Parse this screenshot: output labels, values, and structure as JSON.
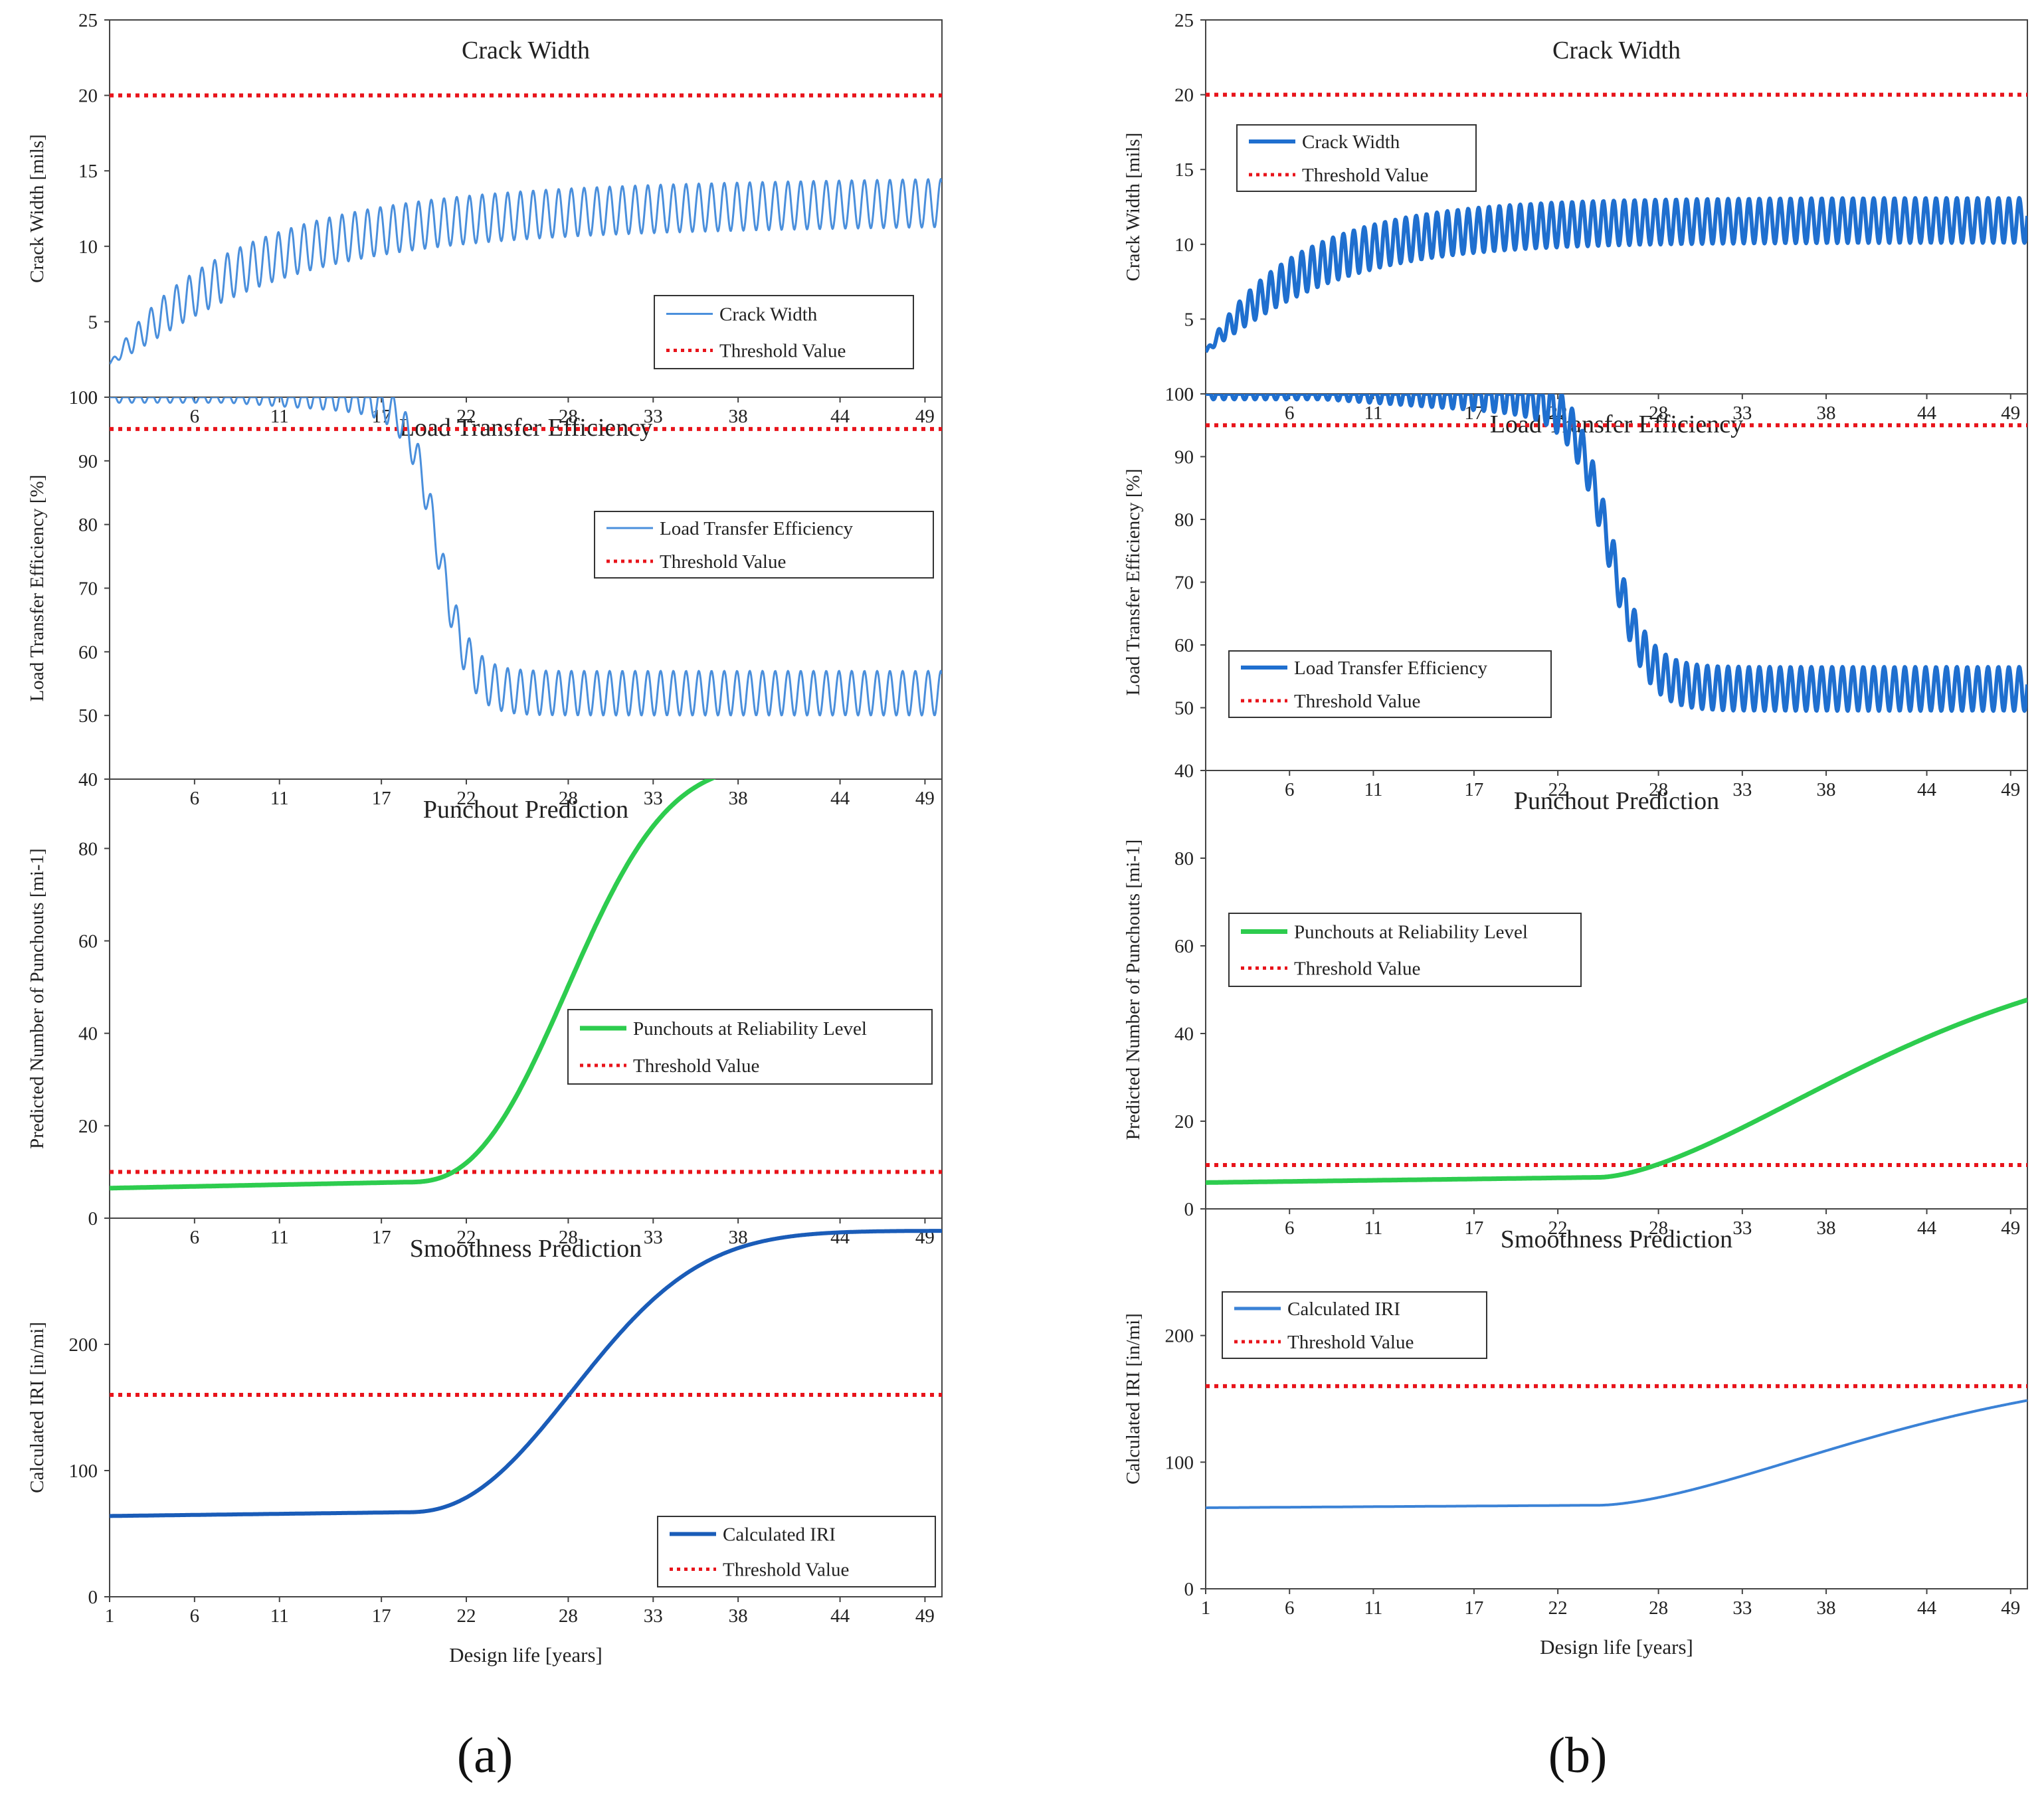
{
  "figure": {
    "panel_labels": [
      "(a)",
      "(b)"
    ],
    "x_ticks": [
      "1",
      "6",
      "11",
      "17",
      "22",
      "28",
      "33",
      "38",
      "44",
      "49"
    ],
    "x_label": "Design life [years]"
  },
  "colors": {
    "threshold": "#e8141b",
    "blue_a": "#4a8fdc",
    "blue_b": "#1f6fcf",
    "green": "#2dcc4e",
    "iri_a": "#1a5cb8",
    "iri_b": "#3b82d6"
  },
  "chart_data": [
    {
      "panel": "a",
      "type": "line",
      "title": "Crack Width",
      "ylabel": "Crack Width [mils]",
      "ylim": [
        0,
        25
      ],
      "yticks": [
        "0",
        "5",
        "10",
        "15",
        "20",
        "25"
      ],
      "xlim": [
        1,
        50
      ],
      "threshold": 20,
      "series": [
        {
          "name": "Crack Width",
          "kind": "crack",
          "params": {
            "start": 2.2,
            "asym": 12.3,
            "rate": 0.12,
            "amp": 1.6,
            "period": 0.75,
            "slope": 0.012
          }
        },
        {
          "name": "Threshold Value",
          "kind": "threshold",
          "value": 20
        }
      ],
      "legend": {
        "entries": [
          "Crack Width",
          "Threshold Value"
        ],
        "position": "bottom-right"
      }
    },
    {
      "panel": "a",
      "type": "line",
      "title": "Load Transfer Efficiency",
      "ylabel": "Load Transfer Efficiency [%]",
      "ylim": [
        40,
        100
      ],
      "yticks": [
        "40",
        "50",
        "60",
        "70",
        "80",
        "90",
        "100"
      ],
      "xlim": [
        1,
        50
      ],
      "threshold": 95,
      "series": [
        {
          "name": "Load Transfer Efficiency",
          "kind": "lte",
          "params": {
            "high": 100,
            "low": 53.5,
            "mid": 20.3,
            "width": 0.9,
            "amp_max": 3.5,
            "period": 0.75
          }
        },
        {
          "name": "Threshold Value",
          "kind": "threshold",
          "value": 95
        }
      ],
      "legend": {
        "entries": [
          "Load Transfer Efficiency",
          "Threshold Value"
        ],
        "position": "top-right"
      }
    },
    {
      "panel": "a",
      "type": "line",
      "title": "Punchout Prediction",
      "ylabel": "Predicted Number of Punchouts [mi-1]",
      "ylim": [
        0,
        95
      ],
      "yticks": [
        "0",
        "20",
        "40",
        "60",
        "80"
      ],
      "xlim": [
        1,
        50
      ],
      "threshold": 10,
      "series": [
        {
          "name": "Punchouts at Reliability Level",
          "kind": "growth",
          "params": {
            "base": 6.5,
            "base_end": 7.8,
            "t0": 18.5,
            "total": 98.5,
            "k": 0.072,
            "p": 2.6
          }
        },
        {
          "name": "Threshold Value",
          "kind": "threshold",
          "value": 10
        }
      ],
      "legend": {
        "entries": [
          "Punchouts at Reliability Level",
          "Threshold Value"
        ],
        "position": "center-right"
      }
    },
    {
      "panel": "a",
      "type": "line",
      "title": "Smoothness Prediction",
      "ylabel": "Calculated IRI [in/mi]",
      "ylim": [
        0,
        300
      ],
      "yticks": [
        "0",
        "100",
        "200"
      ],
      "xlim": [
        1,
        50
      ],
      "threshold": 160,
      "series": [
        {
          "name": "Calculated IRI",
          "kind": "growth",
          "params": {
            "base": 64,
            "base_end": 67,
            "t0": 18.5,
            "total": 290,
            "k": 0.06,
            "p": 2.3
          }
        },
        {
          "name": "Threshold Value",
          "kind": "threshold",
          "value": 160
        }
      ],
      "legend": {
        "entries": [
          "Calculated IRI",
          "Threshold Value"
        ],
        "position": "bottom-right"
      }
    },
    {
      "panel": "b",
      "type": "line",
      "title": "Crack Width",
      "ylabel": "Crack Width [mils]",
      "ylim": [
        0,
        25
      ],
      "yticks": [
        "0",
        "5",
        "10",
        "15",
        "20",
        "25"
      ],
      "xlim": [
        1,
        50
      ],
      "threshold": 20,
      "series": [
        {
          "name": "Crack Width",
          "kind": "crack",
          "params": {
            "start": 2.8,
            "asym": 11.6,
            "rate": 0.16,
            "amp": 1.5,
            "period": 0.62,
            "slope": 0.0
          }
        },
        {
          "name": "Threshold Value",
          "kind": "threshold",
          "value": 20
        }
      ],
      "legend": {
        "entries": [
          "Crack Width",
          "Threshold Value"
        ],
        "position": "top-left"
      }
    },
    {
      "panel": "b",
      "type": "line",
      "title": "Load Transfer Efficiency",
      "ylabel": "Load Transfer Efficiency [%]",
      "ylim": [
        40,
        100
      ],
      "yticks": [
        "40",
        "50",
        "60",
        "70",
        "80",
        "90",
        "100"
      ],
      "xlim": [
        1,
        50
      ],
      "threshold": 95,
      "series": [
        {
          "name": "Load Transfer Efficiency",
          "kind": "lte",
          "params": {
            "high": 100,
            "low": 53,
            "mid": 25,
            "width": 1.1,
            "amp_max": 3.5,
            "period": 0.62
          }
        },
        {
          "name": "Threshold Value",
          "kind": "threshold",
          "value": 95
        }
      ],
      "legend": {
        "entries": [
          "Load Transfer Efficiency",
          "Threshold Value"
        ],
        "position": "bottom-left"
      }
    },
    {
      "panel": "b",
      "type": "line",
      "title": "Punchout Prediction",
      "ylabel": "Predicted Number of Punchouts [mi-1]",
      "ylim": [
        0,
        100
      ],
      "yticks": [
        "0",
        "20",
        "40",
        "60",
        "80"
      ],
      "xlim": [
        1,
        50
      ],
      "threshold": 10,
      "series": [
        {
          "name": "Punchouts at Reliability Level",
          "kind": "growth",
          "params": {
            "base": 6.0,
            "base_end": 7.2,
            "t0": 24.5,
            "total": 62,
            "k": 0.03,
            "p": 1.6
          }
        },
        {
          "name": "Threshold Value",
          "kind": "threshold",
          "value": 10
        }
      ],
      "legend": {
        "entries": [
          "Punchouts at Reliability Level",
          "Threshold Value"
        ],
        "position": "center-left"
      }
    },
    {
      "panel": "b",
      "type": "line",
      "title": "Smoothness Prediction",
      "ylabel": "Calculated IRI [in/mi]",
      "ylim": [
        0,
        300
      ],
      "yticks": [
        "0",
        "100",
        "200"
      ],
      "xlim": [
        1,
        50
      ],
      "threshold": 160,
      "series": [
        {
          "name": "Calculated IRI",
          "kind": "growth",
          "params": {
            "base": 64,
            "base_end": 66,
            "t0": 24.5,
            "total": 178,
            "k": 0.03,
            "p": 1.6
          }
        },
        {
          "name": "Threshold Value",
          "kind": "threshold",
          "value": 160
        }
      ],
      "legend": {
        "entries": [
          "Calculated IRI",
          "Threshold Value"
        ],
        "position": "top-left"
      }
    }
  ]
}
